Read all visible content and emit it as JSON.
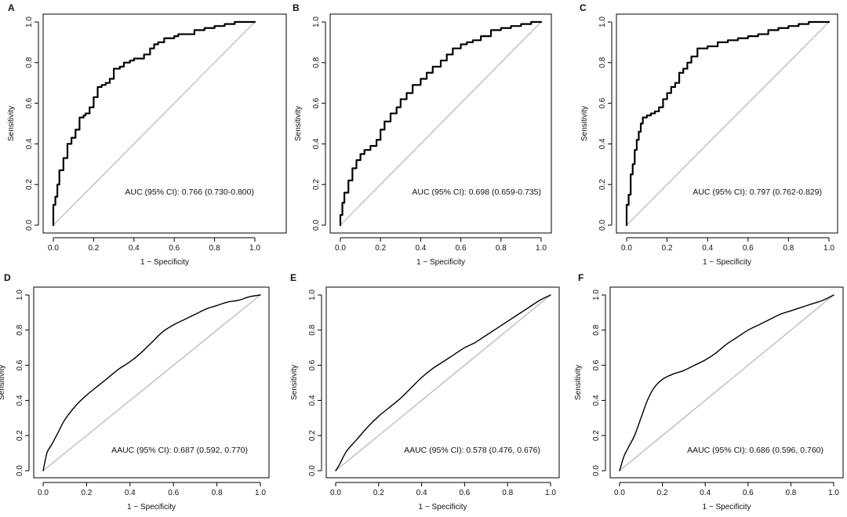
{
  "chart_data": [
    {
      "panel": "A",
      "type": "line",
      "curve_style": "step",
      "xlabel": "1 − Specificity",
      "ylabel": "Sensitivity",
      "xlim": [
        0,
        1
      ],
      "ylim": [
        0,
        1
      ],
      "ticks": [
        0.0,
        0.2,
        0.4,
        0.6,
        0.8,
        1.0
      ],
      "tick_labels": [
        "0.0",
        "0.2",
        "0.4",
        "0.6",
        "0.8",
        "1.0"
      ],
      "annotation": "AUC (95% CI): 0.766 (0.730-0.800)",
      "reference_line": {
        "x": [
          0,
          1
        ],
        "y": [
          0,
          1
        ]
      },
      "series": [
        {
          "name": "ROC",
          "x": [
            0,
            0.01,
            0.02,
            0.03,
            0.05,
            0.07,
            0.09,
            0.11,
            0.13,
            0.15,
            0.16,
            0.18,
            0.2,
            0.22,
            0.24,
            0.26,
            0.28,
            0.3,
            0.33,
            0.35,
            0.38,
            0.4,
            0.45,
            0.48,
            0.5,
            0.52,
            0.55,
            0.6,
            0.62,
            0.7,
            0.75,
            0.8,
            0.85,
            0.9,
            0.95,
            1.0
          ],
          "y": [
            0,
            0.1,
            0.14,
            0.2,
            0.27,
            0.33,
            0.4,
            0.43,
            0.47,
            0.53,
            0.54,
            0.55,
            0.58,
            0.63,
            0.68,
            0.69,
            0.7,
            0.72,
            0.77,
            0.78,
            0.8,
            0.81,
            0.82,
            0.84,
            0.87,
            0.89,
            0.9,
            0.92,
            0.93,
            0.94,
            0.96,
            0.97,
            0.98,
            0.99,
            1.0,
            1.0
          ]
        }
      ]
    },
    {
      "panel": "B",
      "type": "line",
      "curve_style": "step",
      "xlabel": "1 − Specificity",
      "ylabel": "Sensitivity",
      "xlim": [
        0,
        1
      ],
      "ylim": [
        0,
        1
      ],
      "ticks": [
        0.0,
        0.2,
        0.4,
        0.6,
        0.8,
        1.0
      ],
      "tick_labels": [
        "0.0",
        "0.2",
        "0.4",
        "0.6",
        "0.8",
        "1.0"
      ],
      "annotation": "AUC (95% CI): 0.698 (0.659-0.735)",
      "reference_line": {
        "x": [
          0,
          1
        ],
        "y": [
          0,
          1
        ]
      },
      "series": [
        {
          "name": "ROC",
          "x": [
            0,
            0.01,
            0.02,
            0.04,
            0.06,
            0.08,
            0.1,
            0.12,
            0.15,
            0.18,
            0.2,
            0.22,
            0.25,
            0.28,
            0.3,
            0.33,
            0.36,
            0.4,
            0.43,
            0.46,
            0.5,
            0.53,
            0.56,
            0.6,
            0.63,
            0.66,
            0.7,
            0.75,
            0.8,
            0.85,
            0.9,
            0.95,
            1.0
          ],
          "y": [
            0,
            0.05,
            0.11,
            0.16,
            0.22,
            0.28,
            0.32,
            0.35,
            0.37,
            0.39,
            0.42,
            0.47,
            0.51,
            0.55,
            0.58,
            0.62,
            0.65,
            0.69,
            0.72,
            0.75,
            0.78,
            0.81,
            0.84,
            0.87,
            0.89,
            0.9,
            0.91,
            0.93,
            0.96,
            0.97,
            0.98,
            0.99,
            1.0
          ]
        }
      ]
    },
    {
      "panel": "C",
      "type": "line",
      "curve_style": "step",
      "xlabel": "1 − Specificity",
      "ylabel": "Sensitivity",
      "xlim": [
        0,
        1
      ],
      "ylim": [
        0,
        1
      ],
      "ticks": [
        0.0,
        0.2,
        0.4,
        0.6,
        0.8,
        1.0
      ],
      "tick_labels": [
        "0.0",
        "0.2",
        "0.4",
        "0.6",
        "0.8",
        "1.0"
      ],
      "annotation": "AUC (95% CI): 0.797 (0.762-0.829)",
      "reference_line": {
        "x": [
          0,
          1
        ],
        "y": [
          0,
          1
        ]
      },
      "series": [
        {
          "name": "ROC",
          "x": [
            0,
            0.01,
            0.02,
            0.03,
            0.04,
            0.05,
            0.06,
            0.07,
            0.08,
            0.1,
            0.12,
            0.14,
            0.16,
            0.18,
            0.2,
            0.22,
            0.24,
            0.26,
            0.28,
            0.3,
            0.32,
            0.35,
            0.38,
            0.4,
            0.45,
            0.5,
            0.55,
            0.6,
            0.65,
            0.7,
            0.75,
            0.8,
            0.85,
            0.9,
            0.95,
            1.0
          ],
          "y": [
            0,
            0.1,
            0.15,
            0.25,
            0.3,
            0.37,
            0.42,
            0.46,
            0.5,
            0.53,
            0.54,
            0.55,
            0.56,
            0.58,
            0.62,
            0.65,
            0.68,
            0.7,
            0.75,
            0.77,
            0.8,
            0.83,
            0.87,
            0.87,
            0.88,
            0.9,
            0.91,
            0.92,
            0.93,
            0.94,
            0.96,
            0.97,
            0.98,
            0.99,
            1.0,
            1.0
          ]
        }
      ]
    },
    {
      "panel": "D",
      "type": "line",
      "curve_style": "smooth",
      "xlabel": "1 − Specificity",
      "ylabel": "Sensitivity",
      "xlim": [
        0,
        1
      ],
      "ylim": [
        0,
        1
      ],
      "ticks": [
        0.0,
        0.2,
        0.4,
        0.6,
        0.8,
        1.0
      ],
      "tick_labels": [
        "0.0",
        "0.2",
        "0.4",
        "0.6",
        "0.8",
        "1.0"
      ],
      "annotation": "AAUC (95% CI): 0.687 (0.592, 0.770)",
      "reference_line": {
        "x": [
          0,
          1
        ],
        "y": [
          0,
          1
        ]
      },
      "series": [
        {
          "name": "ROC",
          "x": [
            0,
            0.01,
            0.02,
            0.04,
            0.07,
            0.1,
            0.15,
            0.2,
            0.25,
            0.3,
            0.35,
            0.4,
            0.45,
            0.5,
            0.55,
            0.6,
            0.65,
            0.7,
            0.75,
            0.8,
            0.85,
            0.9,
            0.95,
            1.0
          ],
          "y": [
            0,
            0.06,
            0.11,
            0.15,
            0.22,
            0.29,
            0.37,
            0.43,
            0.48,
            0.53,
            0.58,
            0.62,
            0.67,
            0.73,
            0.79,
            0.83,
            0.86,
            0.89,
            0.92,
            0.94,
            0.96,
            0.97,
            0.99,
            1.0
          ]
        }
      ]
    },
    {
      "panel": "E",
      "type": "line",
      "curve_style": "smooth",
      "xlabel": "1 − Specificity",
      "ylabel": "Sensitivity",
      "xlim": [
        0,
        1
      ],
      "ylim": [
        0,
        1
      ],
      "ticks": [
        0.0,
        0.2,
        0.4,
        0.6,
        0.8,
        1.0
      ],
      "tick_labels": [
        "0.0",
        "0.2",
        "0.4",
        "0.6",
        "0.8",
        "1.0"
      ],
      "annotation": "AAUC (95% CI): 0.578 (0.476, 0.676)",
      "reference_line": {
        "x": [
          0,
          1
        ],
        "y": [
          0,
          1
        ]
      },
      "series": [
        {
          "name": "ROC",
          "x": [
            0,
            0.02,
            0.05,
            0.1,
            0.15,
            0.2,
            0.25,
            0.3,
            0.35,
            0.4,
            0.45,
            0.5,
            0.55,
            0.6,
            0.65,
            0.7,
            0.75,
            0.8,
            0.85,
            0.9,
            0.95,
            1.0
          ],
          "y": [
            0,
            0.04,
            0.11,
            0.18,
            0.25,
            0.31,
            0.36,
            0.41,
            0.47,
            0.53,
            0.58,
            0.62,
            0.66,
            0.7,
            0.73,
            0.77,
            0.81,
            0.85,
            0.89,
            0.93,
            0.97,
            1.0
          ]
        }
      ]
    },
    {
      "panel": "F",
      "type": "line",
      "curve_style": "smooth",
      "xlabel": "1 − Specificity",
      "ylabel": "Sensitivity",
      "xlim": [
        0,
        1
      ],
      "ylim": [
        0,
        1
      ],
      "ticks": [
        0.0,
        0.2,
        0.4,
        0.6,
        0.8,
        1.0
      ],
      "tick_labels": [
        "0.0",
        "0.2",
        "0.4",
        "0.6",
        "0.8",
        "1.0"
      ],
      "annotation": "AAUC (95% CI): 0.686 (0.596, 0.760)",
      "reference_line": {
        "x": [
          0,
          1
        ],
        "y": [
          0,
          1
        ]
      },
      "series": [
        {
          "name": "ROC",
          "x": [
            0,
            0.02,
            0.04,
            0.07,
            0.1,
            0.13,
            0.16,
            0.2,
            0.25,
            0.3,
            0.35,
            0.4,
            0.45,
            0.5,
            0.55,
            0.6,
            0.65,
            0.7,
            0.75,
            0.8,
            0.85,
            0.9,
            0.95,
            1.0
          ],
          "y": [
            0,
            0.08,
            0.13,
            0.2,
            0.3,
            0.4,
            0.47,
            0.52,
            0.55,
            0.57,
            0.6,
            0.63,
            0.67,
            0.72,
            0.76,
            0.8,
            0.83,
            0.86,
            0.89,
            0.91,
            0.93,
            0.95,
            0.97,
            1.0
          ]
        }
      ]
    }
  ]
}
